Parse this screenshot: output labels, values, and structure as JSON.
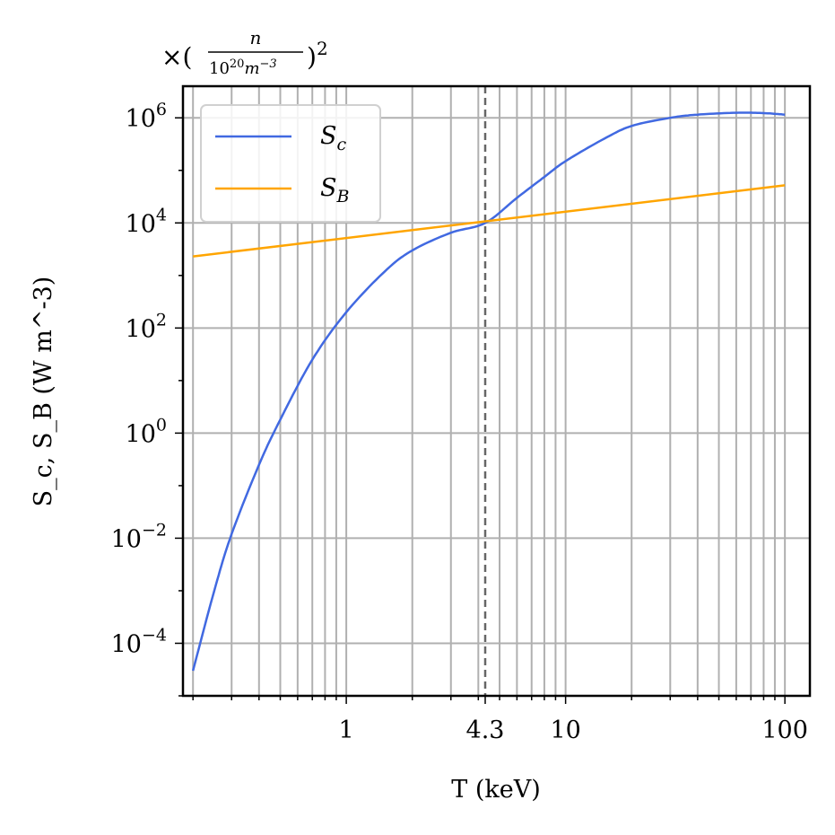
{
  "chart_data": {
    "type": "line",
    "x_scale": "log",
    "y_scale": "log",
    "xlim": [
      0.18,
      130
    ],
    "ylim": [
      1e-05,
      4000000.0
    ],
    "xlabel": "T (keV)",
    "ylabel": "S_c, S_B (W m^-3)",
    "x_ticks": [
      {
        "value": 1,
        "label": "1"
      },
      {
        "value": 4.3,
        "label": "4.3"
      },
      {
        "value": 10,
        "label": "10"
      },
      {
        "value": 100,
        "label": "100"
      }
    ],
    "y_ticks": [
      {
        "value": 0.0001,
        "base": "10",
        "exp": "−4"
      },
      {
        "value": 0.01,
        "base": "10",
        "exp": "−2"
      },
      {
        "value": 1,
        "base": "10",
        "exp": "0"
      },
      {
        "value": 100,
        "base": "10",
        "exp": "2"
      },
      {
        "value": 10000,
        "base": "10",
        "exp": "4"
      },
      {
        "value": 1000000,
        "base": "10",
        "exp": "6"
      }
    ],
    "grid": "on (major and minor)",
    "legend_position": "top-left",
    "annotation": {
      "prefix": "×(",
      "numerator": "n",
      "denominator_base": "10",
      "denominator_exp": "20",
      "denominator_unit": "m",
      "unit_exp": "−3",
      "suffix": ")",
      "power": "2"
    },
    "vline": {
      "x": 4.3,
      "style": "dashed"
    },
    "series": [
      {
        "name": "S_c",
        "legend": {
          "base": "S",
          "sub": "c"
        },
        "color": "#4169e1",
        "x": [
          0.2,
          0.25,
          0.3,
          0.4,
          0.5,
          0.7,
          1,
          1.5,
          2,
          3,
          4.3,
          6,
          8,
          10,
          15,
          20,
          30,
          40,
          60,
          80,
          100
        ],
        "y": [
          3e-05,
          0.001,
          0.012,
          0.25,
          1.8,
          25,
          200,
          1200,
          3000,
          6500,
          10000,
          30000,
          75000,
          150000,
          400000,
          700000,
          1000000,
          1150000,
          1250000,
          1230000,
          1150000
        ]
      },
      {
        "name": "S_B",
        "legend": {
          "base": "S",
          "sub": "B"
        },
        "color": "#ffa500",
        "x": [
          0.2,
          100
        ],
        "y": [
          2300,
          52000
        ]
      }
    ]
  }
}
